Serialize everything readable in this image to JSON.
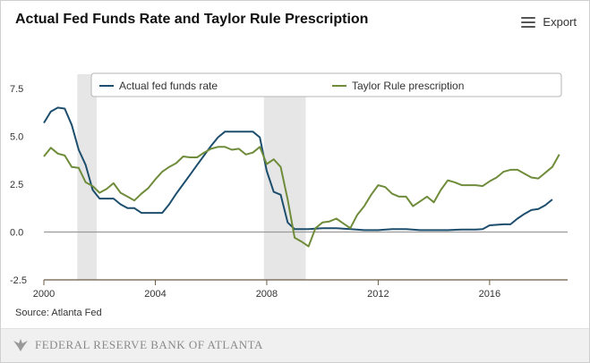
{
  "header": {
    "title": "Actual Fed Funds Rate and Taylor Rule Prescription",
    "export_label": "Export",
    "export_icon": "menu-icon"
  },
  "source_note": "Source: Atlanta Fed",
  "footer": {
    "logo_icon": "eagle-icon",
    "bank_name": "Federal Reserve Bank of Atlanta"
  },
  "chart_data": {
    "type": "line",
    "xlabel": "",
    "ylabel": "",
    "xlim": [
      2000,
      2018.8
    ],
    "ylim": [
      -2.5,
      7.5
    ],
    "xticks": [
      2000,
      2004,
      2008,
      2012,
      2016
    ],
    "xtick_labels": [
      "2000",
      "2004",
      "2008",
      "2012",
      "2016"
    ],
    "yticks": [
      -2.5,
      0,
      2.5,
      5,
      7.5
    ],
    "ytick_labels": [
      "-2.5",
      "0.0",
      "2.5",
      "5.0",
      "7.5"
    ],
    "grid": false,
    "legend_position": "top",
    "recessions": [
      [
        2001.2,
        2001.9
      ],
      [
        2007.9,
        2009.4
      ]
    ],
    "series": [
      {
        "name": "Actual fed funds rate",
        "color": "#1d4e6e",
        "x": [
          2000.0,
          2000.25,
          2000.5,
          2000.75,
          2001.0,
          2001.25,
          2001.5,
          2001.75,
          2002.0,
          2002.25,
          2002.5,
          2002.75,
          2003.0,
          2003.25,
          2003.5,
          2003.75,
          2004.0,
          2004.25,
          2004.5,
          2004.75,
          2005.0,
          2005.25,
          2005.5,
          2005.75,
          2006.0,
          2006.25,
          2006.5,
          2006.75,
          2007.0,
          2007.25,
          2007.5,
          2007.75,
          2008.0,
          2008.25,
          2008.5,
          2008.75,
          2009.0,
          2009.5,
          2010.0,
          2010.5,
          2011.0,
          2011.5,
          2012.0,
          2012.5,
          2013.0,
          2013.5,
          2014.0,
          2014.5,
          2015.0,
          2015.5,
          2015.75,
          2016.0,
          2016.5,
          2016.75,
          2017.0,
          2017.25,
          2017.5,
          2017.75,
          2018.0,
          2018.25
        ],
        "values": [
          5.7,
          6.3,
          6.5,
          6.45,
          5.6,
          4.3,
          3.5,
          2.2,
          1.75,
          1.75,
          1.75,
          1.45,
          1.25,
          1.25,
          1.0,
          1.0,
          1.0,
          1.0,
          1.45,
          2.0,
          2.5,
          3.0,
          3.5,
          4.0,
          4.5,
          4.95,
          5.25,
          5.25,
          5.25,
          5.25,
          5.25,
          4.95,
          3.2,
          2.1,
          1.95,
          0.5,
          0.15,
          0.15,
          0.2,
          0.2,
          0.15,
          0.1,
          0.1,
          0.15,
          0.15,
          0.1,
          0.1,
          0.1,
          0.13,
          0.13,
          0.15,
          0.35,
          0.4,
          0.4,
          0.7,
          0.95,
          1.15,
          1.2,
          1.4,
          1.7
        ]
      },
      {
        "name": "Taylor Rule prescription",
        "color": "#6f8c3a",
        "x": [
          2000.0,
          2000.25,
          2000.5,
          2000.75,
          2001.0,
          2001.25,
          2001.5,
          2001.75,
          2002.0,
          2002.25,
          2002.5,
          2002.75,
          2003.0,
          2003.25,
          2003.5,
          2003.75,
          2004.0,
          2004.25,
          2004.5,
          2004.75,
          2005.0,
          2005.25,
          2005.5,
          2005.75,
          2006.0,
          2006.25,
          2006.5,
          2006.75,
          2007.0,
          2007.25,
          2007.5,
          2007.75,
          2008.0,
          2008.25,
          2008.5,
          2008.75,
          2009.0,
          2009.25,
          2009.5,
          2009.75,
          2010.0,
          2010.25,
          2010.5,
          2010.75,
          2011.0,
          2011.25,
          2011.5,
          2011.75,
          2012.0,
          2012.25,
          2012.5,
          2012.75,
          2013.0,
          2013.25,
          2013.5,
          2013.75,
          2014.0,
          2014.25,
          2014.5,
          2014.75,
          2015.0,
          2015.25,
          2015.5,
          2015.75,
          2016.0,
          2016.25,
          2016.5,
          2016.75,
          2017.0,
          2017.25,
          2017.5,
          2017.75,
          2018.0,
          2018.25,
          2018.5
        ],
        "values": [
          3.95,
          4.4,
          4.1,
          4.0,
          3.4,
          3.35,
          2.6,
          2.4,
          2.05,
          2.25,
          2.55,
          2.05,
          1.85,
          1.65,
          2.0,
          2.3,
          2.75,
          3.15,
          3.4,
          3.6,
          3.95,
          3.9,
          3.9,
          4.15,
          4.35,
          4.45,
          4.45,
          4.3,
          4.35,
          4.05,
          4.15,
          4.45,
          3.55,
          3.8,
          3.4,
          1.7,
          -0.3,
          -0.5,
          -0.75,
          0.2,
          0.5,
          0.55,
          0.7,
          0.45,
          0.2,
          0.9,
          1.35,
          1.95,
          2.45,
          2.35,
          2.0,
          1.85,
          1.85,
          1.35,
          1.6,
          1.85,
          1.55,
          2.2,
          2.7,
          2.6,
          2.45,
          2.45,
          2.45,
          2.4,
          2.65,
          2.85,
          3.15,
          3.25,
          3.25,
          3.05,
          2.85,
          2.8,
          3.1,
          3.4,
          4.05
        ]
      }
    ]
  }
}
